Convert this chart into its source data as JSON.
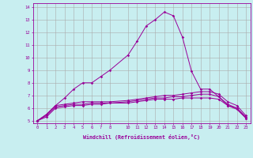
{
  "xlabel": "Windchill (Refroidissement éolien,°C)",
  "bg_color": "#c8eef0",
  "line_color": "#990099",
  "grid_color": "#aaaaaa",
  "xlim": [
    -0.5,
    23.5
  ],
  "ylim": [
    4.8,
    14.3
  ],
  "xticks": [
    0,
    1,
    2,
    3,
    4,
    5,
    6,
    7,
    8,
    10,
    11,
    12,
    13,
    14,
    15,
    16,
    17,
    18,
    19,
    20,
    21,
    22,
    23
  ],
  "yticks": [
    5,
    6,
    7,
    8,
    9,
    10,
    11,
    12,
    13,
    14
  ],
  "line1_x": [
    0,
    1,
    2,
    3,
    4,
    5,
    6,
    7,
    8,
    10,
    11,
    12,
    13,
    14,
    15,
    16,
    17,
    18,
    19,
    20,
    21,
    22,
    23
  ],
  "line1_y": [
    5.0,
    5.5,
    6.2,
    6.8,
    7.5,
    8.0,
    8.0,
    8.5,
    9.0,
    10.2,
    11.3,
    12.5,
    13.0,
    13.6,
    13.3,
    11.6,
    8.9,
    7.5,
    7.5,
    6.9,
    6.2,
    6.0,
    5.2
  ],
  "line2_x": [
    0,
    1,
    2,
    3,
    4,
    5,
    6,
    7,
    8,
    10,
    11,
    12,
    13,
    14,
    15,
    16,
    17,
    18,
    19,
    20,
    21,
    22,
    23
  ],
  "line2_y": [
    5.0,
    5.5,
    6.2,
    6.3,
    6.4,
    6.5,
    6.5,
    6.5,
    6.5,
    6.6,
    6.7,
    6.8,
    6.9,
    7.0,
    7.0,
    7.1,
    7.2,
    7.3,
    7.3,
    7.1,
    6.5,
    6.2,
    5.4
  ],
  "line3_x": [
    0,
    1,
    2,
    3,
    4,
    5,
    6,
    7,
    8,
    10,
    11,
    12,
    13,
    14,
    15,
    16,
    17,
    18,
    19,
    20,
    21,
    22,
    23
  ],
  "line3_y": [
    5.0,
    5.4,
    6.1,
    6.2,
    6.3,
    6.3,
    6.4,
    6.4,
    6.4,
    6.5,
    6.6,
    6.7,
    6.8,
    6.8,
    6.9,
    6.9,
    7.0,
    7.1,
    7.1,
    6.9,
    6.3,
    6.0,
    5.3
  ],
  "line4_x": [
    0,
    1,
    2,
    3,
    4,
    5,
    6,
    7,
    8,
    10,
    11,
    12,
    13,
    14,
    15,
    16,
    17,
    18,
    19,
    20,
    21,
    22,
    23
  ],
  "line4_y": [
    5.0,
    5.3,
    6.0,
    6.1,
    6.2,
    6.2,
    6.3,
    6.3,
    6.4,
    6.4,
    6.5,
    6.6,
    6.7,
    6.7,
    6.7,
    6.8,
    6.8,
    6.8,
    6.8,
    6.7,
    6.2,
    5.9,
    5.2
  ]
}
